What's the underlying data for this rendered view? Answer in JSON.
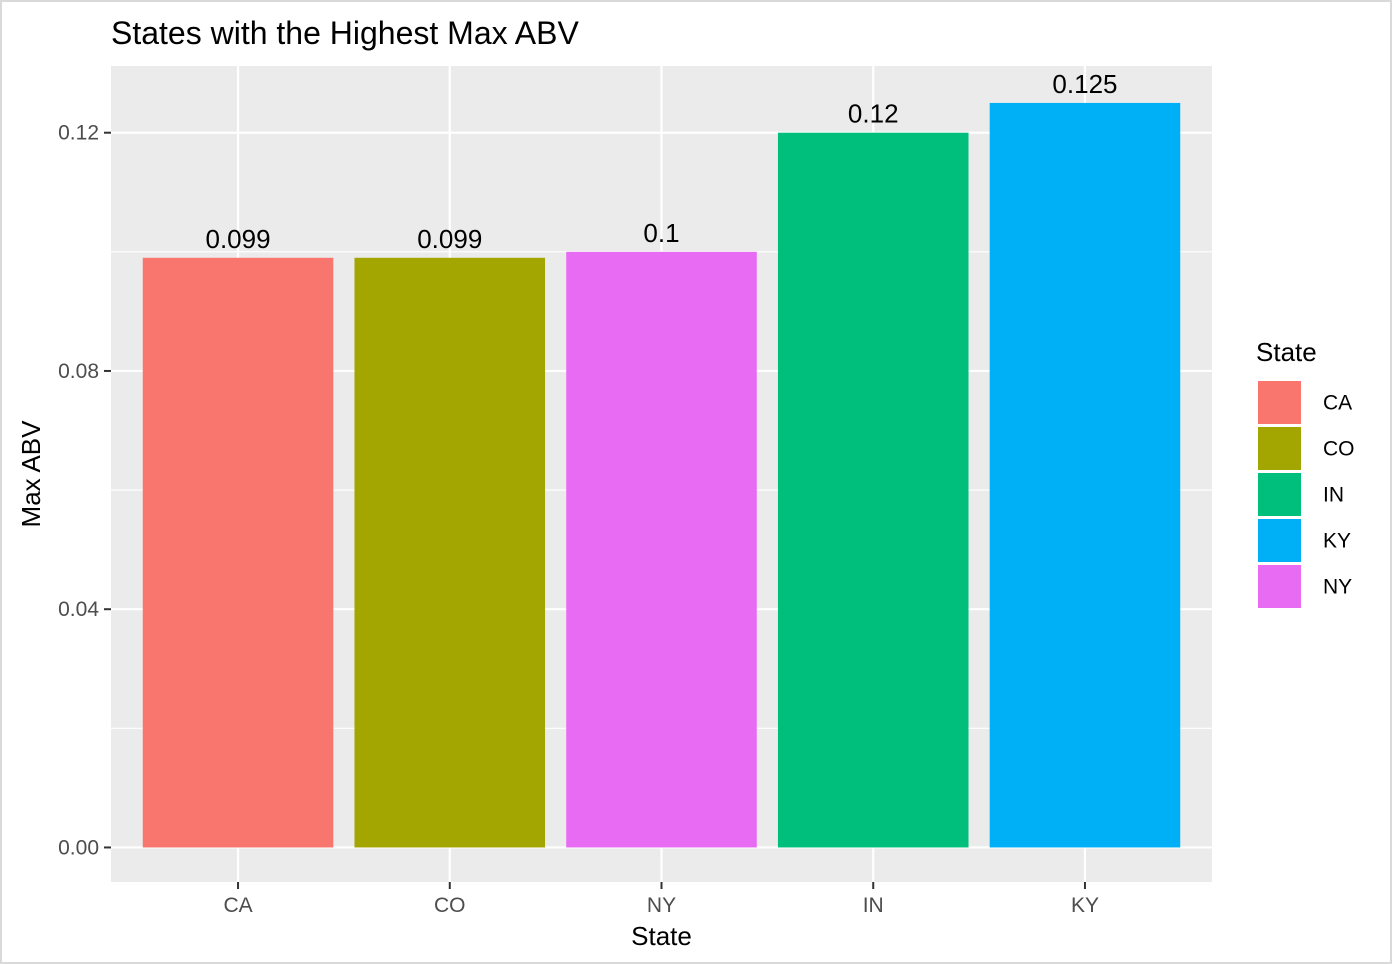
{
  "chart_data": {
    "type": "bar",
    "title": "States with the Highest Max ABV",
    "xlabel": "State",
    "ylabel": "Max ABV",
    "categories": [
      "CA",
      "CO",
      "NY",
      "IN",
      "KY"
    ],
    "values": [
      0.099,
      0.099,
      0.1,
      0.12,
      0.125
    ],
    "value_labels": [
      "0.099",
      "0.099",
      "0.1",
      "0.12",
      "0.125"
    ],
    "colors": [
      "#F8766D",
      "#A3A500",
      "#E76BF3",
      "#00BF7D",
      "#00B0F6"
    ],
    "ylim": [
      -0.0058,
      0.1312
    ],
    "yticks": [
      0.0,
      0.04,
      0.08,
      0.12
    ],
    "ytick_labels": [
      "0.00",
      "0.04",
      "0.08",
      "0.12"
    ],
    "grid": true,
    "legend": {
      "title": "State",
      "position": "right",
      "entries": [
        {
          "label": "CA",
          "color": "#F8766D"
        },
        {
          "label": "CO",
          "color": "#A3A500"
        },
        {
          "label": "IN",
          "color": "#00BF7D"
        },
        {
          "label": "KY",
          "color": "#00B0F6"
        },
        {
          "label": "NY",
          "color": "#E76BF3"
        }
      ]
    }
  }
}
